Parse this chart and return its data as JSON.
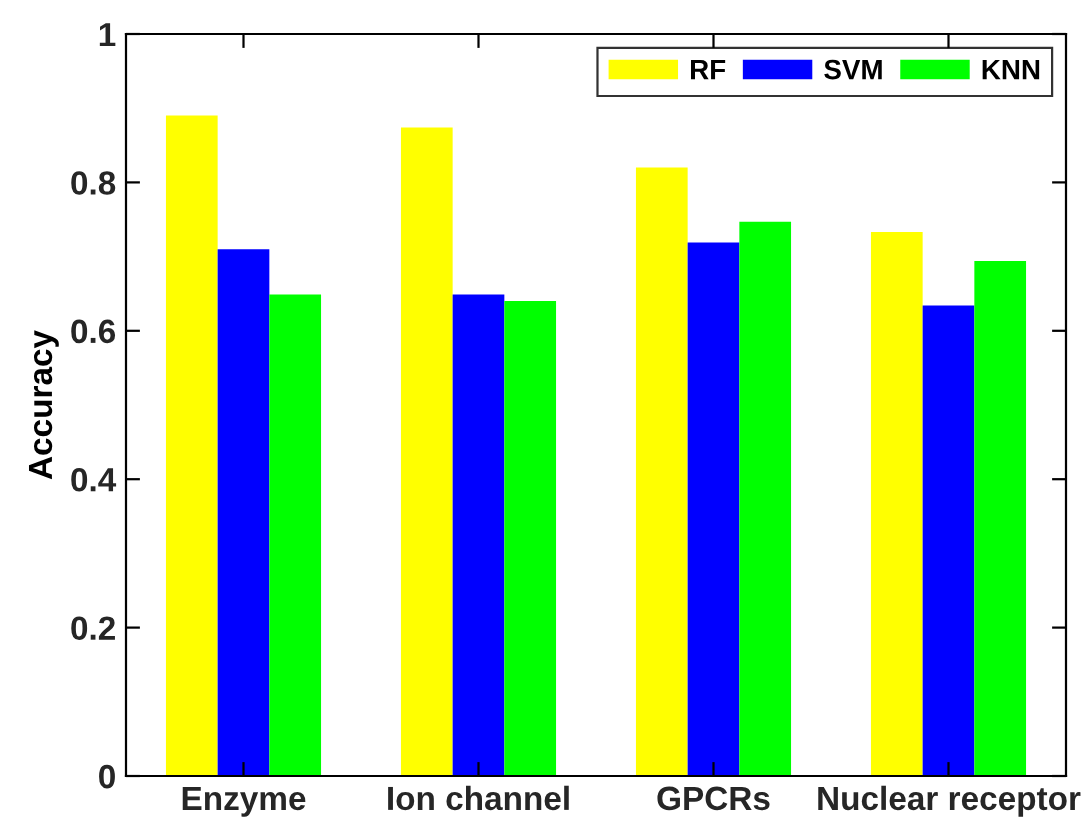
{
  "chart_data": {
    "type": "bar",
    "ylabel": "Accuracy",
    "categories": [
      "Enzyme",
      "Ion channel",
      "GPCRs",
      "Nuclear receptor"
    ],
    "series": [
      {
        "name": "RF",
        "color": "#ffff00",
        "values": [
          0.89,
          0.874,
          0.82,
          0.733
        ]
      },
      {
        "name": "SVM",
        "color": "#0000ff",
        "values": [
          0.71,
          0.649,
          0.719,
          0.634
        ]
      },
      {
        "name": "KNN",
        "color": "#00ff00",
        "values": [
          0.649,
          0.64,
          0.747,
          0.694
        ]
      }
    ],
    "ylim": [
      0,
      1
    ],
    "yticks": [
      0,
      0.2,
      0.4,
      0.6,
      0.8,
      1
    ],
    "legend": "top right",
    "grid": false
  }
}
